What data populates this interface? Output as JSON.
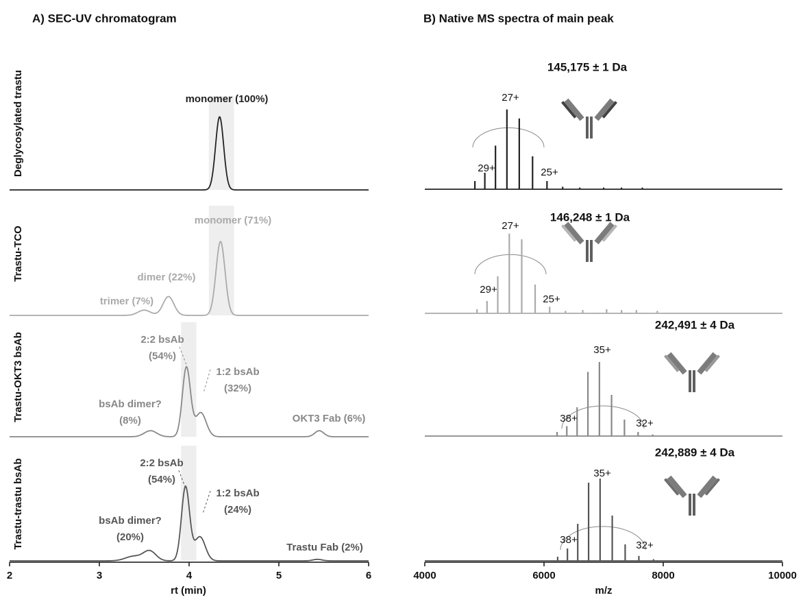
{
  "chart_data": [
    {
      "type": "chromatogram",
      "title": "A) SEC-UV chromatogram",
      "x_label": "rt (min)",
      "xlim": [
        2,
        6
      ],
      "xticks": [
        2,
        3,
        4,
        5,
        6
      ],
      "traces": [
        {
          "name": "Deglycosylated trastu",
          "color": "#222222",
          "highlight": [
            4.22,
            4.5
          ],
          "peaks": {
            "x": [
              4.34
            ],
            "height": [
              0.97
            ],
            "width": [
              0.045
            ]
          },
          "annotations": [
            [
              "monomer (100%)"
            ]
          ]
        },
        {
          "name": "Trastu-TCO",
          "color": "#aaaaaa",
          "highlight": [
            4.22,
            4.5
          ],
          "peaks": {
            "x": [
              4.35,
              3.77,
              3.5
            ],
            "height": [
              0.98,
              0.25,
              0.07
            ],
            "width": [
              0.05,
              0.06,
              0.07
            ]
          },
          "annotations": [
            [
              "monomer (71%)"
            ],
            [
              "dimer (22%)"
            ],
            [
              "trimer (7%)"
            ]
          ]
        },
        {
          "name": "Trastu-OKT3 bsAb",
          "color": "#888888",
          "highlight": [
            3.91,
            4.08
          ],
          "peaks": {
            "x": [
              3.97,
              4.13,
              3.57,
              5.45
            ],
            "height": [
              0.92,
              0.32,
              0.08,
              0.08
            ],
            "width": [
              0.045,
              0.06,
              0.07,
              0.05
            ]
          },
          "annotations": [
            [
              "2:2 bsAb",
              "(54%)"
            ],
            [
              "1:2 bsAb",
              "(32%)"
            ],
            [
              "bsAb dimer?",
              "(8%)"
            ],
            [
              "OKT3 Fab (6%)"
            ]
          ]
        },
        {
          "name": "Trastu-trastu bsAb",
          "color": "#555555",
          "highlight": [
            3.91,
            4.08
          ],
          "peaks": {
            "x": [
              3.96,
              4.12,
              3.56,
              3.38,
              5.43
            ],
            "height": [
              0.98,
              0.32,
              0.13,
              0.06,
              0.02
            ],
            "width": [
              0.045,
              0.06,
              0.07,
              0.09,
              0.05
            ]
          },
          "annotations": [
            [
              "2:2 bsAb",
              "(54%)"
            ],
            [
              "1:2 bsAb",
              "(24%)"
            ],
            [
              "bsAb dimer?",
              "(20%)"
            ],
            [
              "Trastu Fab (2%)"
            ]
          ]
        }
      ]
    },
    {
      "type": "spectrum",
      "title": "B) Native MS spectra of main peak",
      "x_label": "m/z",
      "xlim": [
        4000,
        10000
      ],
      "xticks": [
        4000,
        6000,
        8000,
        10000
      ],
      "traces": [
        {
          "color": "#222222",
          "mass_label": "145,175 ± 1 Da",
          "peaks": {
            "x": [
              4840.2,
              5007.1,
              5185.8,
              5377.8,
              5584.7,
              5808.0,
              6049.9,
              6313.0,
              6600,
              7000,
              7300,
              7650
            ],
            "height": [
              0.1,
              0.2,
              0.53,
              0.97,
              0.86,
              0.4,
              0.1,
              0.03,
              0.02,
              0.02,
              0.02,
              0.02
            ]
          },
          "charge_labels": [
            "27+",
            "29+",
            "25+"
          ]
        },
        {
          "color": "#aaaaaa",
          "mass_label": "146,248 ± 1 Da",
          "peaks": {
            "x": [
              4875.9,
              5044.1,
              5224.1,
              5417.6,
              5625.9,
              5850.9,
              6094.7,
              6359.6,
              6650,
              7050,
              7300,
              7550,
              7900
            ],
            "height": [
              0.05,
              0.15,
              0.45,
              0.97,
              0.9,
              0.35,
              0.08,
              0.03,
              0.04,
              0.05,
              0.04,
              0.04,
              0.03
            ]
          },
          "charge_labels": [
            "27+",
            "29+",
            "25+"
          ]
        },
        {
          "color": "#888888",
          "mass_label": "242,491 ± 4 Da",
          "peaks": {
            "x": [
              6218.7,
              6382.3,
              6554.9,
              6736.9,
              6929.3,
              7133.1,
              7349.2,
              7578.7,
              7823.2
            ],
            "height": [
              0.05,
              0.12,
              0.35,
              0.78,
              0.9,
              0.5,
              0.2,
              0.05,
              0.02
            ]
          },
          "charge_labels": [
            "35+",
            "38+",
            "32+"
          ]
        },
        {
          "color": "#555555",
          "mass_label": "242,889 ± 4 Da",
          "peaks": {
            "x": [
              6228.9,
              6392.9,
              6565.6,
              6748.0,
              6940.7,
              7144.8,
              7361.4,
              7591.3,
              7836.1
            ],
            "height": [
              0.05,
              0.15,
              0.45,
              0.95,
              1.0,
              0.55,
              0.2,
              0.06,
              0.02
            ]
          },
          "charge_labels": [
            "35+",
            "38+",
            "32+"
          ]
        }
      ]
    }
  ]
}
